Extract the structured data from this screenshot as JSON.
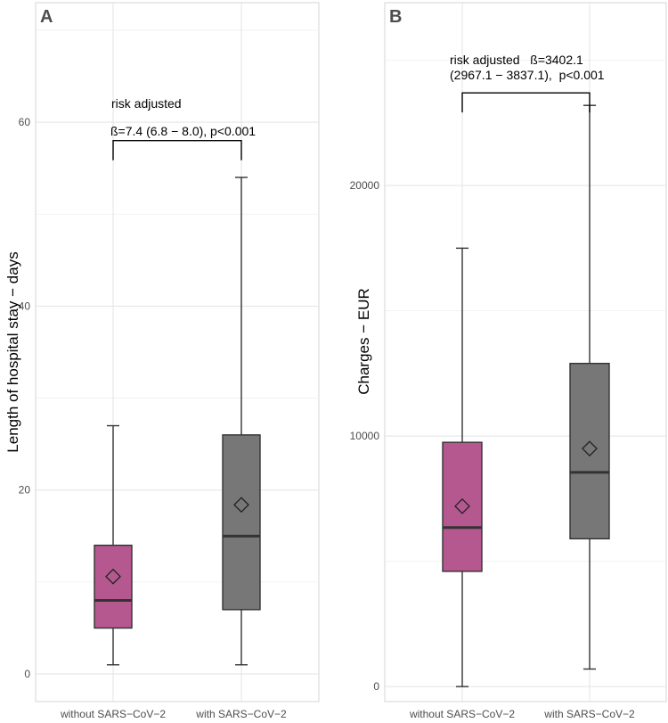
{
  "chart_data": [
    {
      "type": "box",
      "tag": "A",
      "ylabel": "Length of hospital stay − days",
      "xlabel": "",
      "ylim": [
        -3,
        73
      ],
      "yticks": [
        0,
        20,
        40,
        60
      ],
      "categories": [
        "without SARS−CoV−2",
        "with SARS−CoV−2"
      ],
      "series": [
        {
          "category": "without SARS−CoV−2",
          "min": 1,
          "q1": 5,
          "median": 8,
          "q3": 14,
          "max": 27,
          "mean": 10.6,
          "color": "#B5588F"
        },
        {
          "category": "with SARS−CoV−2",
          "min": 1,
          "q1": 7,
          "median": 15,
          "q3": 26,
          "max": 54,
          "mean": 18.4,
          "color": "#777777"
        }
      ],
      "bracket_y": 58,
      "annotation": [
        "risk adjusted",
        "ß=7.4 (6.8 − 8.0), p<0.001"
      ]
    },
    {
      "type": "box",
      "tag": "B",
      "ylabel": "Charges − EUR",
      "xlabel": "",
      "ylim": [
        -600,
        27300
      ],
      "yticks": [
        0,
        10000,
        20000
      ],
      "categories": [
        "without SARS−CoV−2",
        "with SARS−CoV−2"
      ],
      "series": [
        {
          "category": "without SARS−CoV−2",
          "min": 0,
          "q1": 4600,
          "median": 6350,
          "q3": 9750,
          "max": 17500,
          "mean": 7200,
          "color": "#B5588F"
        },
        {
          "category": "with SARS−CoV−2",
          "min": 700,
          "q1": 5900,
          "median": 8550,
          "q3": 12900,
          "max": 23200,
          "mean": 9500,
          "color": "#777777"
        }
      ],
      "bracket_y": 23700,
      "annotation": [
        "risk adjusted   ß=3402.1",
        "(2967.1 − 3837.1),  p<0.001"
      ]
    }
  ]
}
